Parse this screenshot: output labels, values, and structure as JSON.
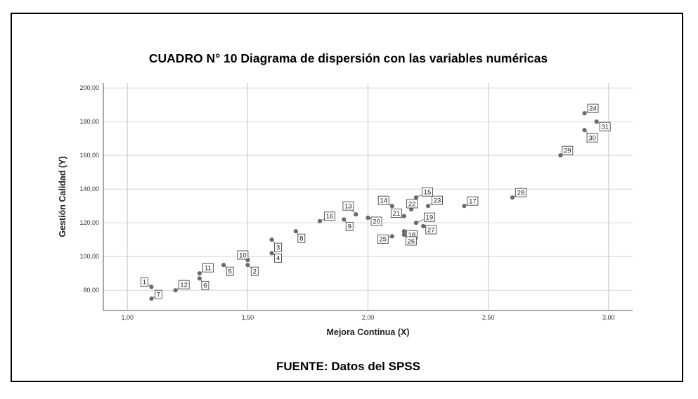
{
  "figure": {
    "title": "CUADRO N° 10 Diagrama de dispersión con las variables numéricas",
    "source": "FUENTE: Datos del SPSS"
  },
  "chart_data": {
    "type": "scatter",
    "xlabel": "Mejora Continua (X)",
    "ylabel": "Gestión Calidad (Y)",
    "xlim": [
      0.9,
      3.1
    ],
    "ylim": [
      68,
      203
    ],
    "xticks": [
      1.0,
      1.5,
      2.0,
      2.5,
      3.0
    ],
    "xtick_labels": [
      "1,00",
      "1,50",
      "2,00",
      "2,50",
      "3,00"
    ],
    "yticks": [
      80,
      100,
      120,
      140,
      160,
      180,
      200
    ],
    "ytick_labels": [
      "80,00",
      "100,00",
      "120,00",
      "140,00",
      "160,00",
      "180,00",
      "200,00"
    ],
    "grid": true,
    "point_color": "#6b6b6b",
    "points": [
      {
        "label": "1",
        "x": 1.1,
        "y": 82
      },
      {
        "label": "2",
        "x": 1.5,
        "y": 95
      },
      {
        "label": "3",
        "x": 1.6,
        "y": 110
      },
      {
        "label": "4",
        "x": 1.6,
        "y": 102
      },
      {
        "label": "5",
        "x": 1.4,
        "y": 95
      },
      {
        "label": "6",
        "x": 1.3,
        "y": 87
      },
      {
        "label": "7",
        "x": 1.1,
        "y": 75
      },
      {
        "label": "8",
        "x": 1.7,
        "y": 115
      },
      {
        "label": "9",
        "x": 1.9,
        "y": 122
      },
      {
        "label": "10",
        "x": 1.5,
        "y": 98
      },
      {
        "label": "11",
        "x": 1.3,
        "y": 90
      },
      {
        "label": "12",
        "x": 1.2,
        "y": 80
      },
      {
        "label": "13",
        "x": 1.95,
        "y": 125
      },
      {
        "label": "14",
        "x": 2.1,
        "y": 130
      },
      {
        "label": "15",
        "x": 2.2,
        "y": 135
      },
      {
        "label": "16",
        "x": 1.8,
        "y": 121
      },
      {
        "label": "17",
        "x": 2.4,
        "y": 130
      },
      {
        "label": "18",
        "x": 2.15,
        "y": 115
      },
      {
        "label": "19",
        "x": 2.2,
        "y": 120
      },
      {
        "label": "20",
        "x": 2.0,
        "y": 123
      },
      {
        "label": "21",
        "x": 2.15,
        "y": 124
      },
      {
        "label": "22",
        "x": 2.18,
        "y": 128
      },
      {
        "label": "23",
        "x": 2.25,
        "y": 130
      },
      {
        "label": "24",
        "x": 2.9,
        "y": 185
      },
      {
        "label": "25",
        "x": 2.1,
        "y": 112
      },
      {
        "label": "26",
        "x": 2.15,
        "y": 113
      },
      {
        "label": "27",
        "x": 2.23,
        "y": 118
      },
      {
        "label": "28",
        "x": 2.6,
        "y": 135
      },
      {
        "label": "29",
        "x": 2.8,
        "y": 160
      },
      {
        "label": "30",
        "x": 2.9,
        "y": 175
      },
      {
        "label": "31",
        "x": 2.95,
        "y": 180
      }
    ]
  }
}
